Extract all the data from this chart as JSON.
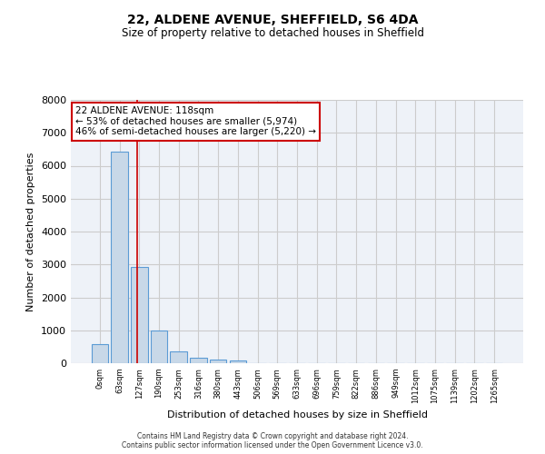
{
  "title1": "22, ALDENE AVENUE, SHEFFIELD, S6 4DA",
  "title2": "Size of property relative to detached houses in Sheffield",
  "xlabel": "Distribution of detached houses by size in Sheffield",
  "ylabel": "Number of detached properties",
  "bin_labels": [
    "0sqm",
    "63sqm",
    "127sqm",
    "190sqm",
    "253sqm",
    "316sqm",
    "380sqm",
    "443sqm",
    "506sqm",
    "569sqm",
    "633sqm",
    "696sqm",
    "759sqm",
    "822sqm",
    "886sqm",
    "949sqm",
    "1012sqm",
    "1075sqm",
    "1139sqm",
    "1202sqm",
    "1265sqm"
  ],
  "bar_values": [
    575,
    6430,
    2920,
    990,
    355,
    170,
    100,
    80,
    0,
    0,
    0,
    0,
    0,
    0,
    0,
    0,
    0,
    0,
    0,
    0,
    0
  ],
  "bar_color": "#c8d8e8",
  "bar_edge_color": "#5b9bd5",
  "vline_x": 1.875,
  "annotation_text": "22 ALDENE AVENUE: 118sqm\n← 53% of detached houses are smaller (5,974)\n46% of semi-detached houses are larger (5,220) →",
  "vline_color": "#cc0000",
  "grid_color": "#cccccc",
  "background_color": "#eef2f8",
  "footer_text": "Contains HM Land Registry data © Crown copyright and database right 2024.\nContains public sector information licensed under the Open Government Licence v3.0.",
  "ylim": [
    0,
    8000
  ],
  "yticks": [
    0,
    1000,
    2000,
    3000,
    4000,
    5000,
    6000,
    7000,
    8000
  ]
}
